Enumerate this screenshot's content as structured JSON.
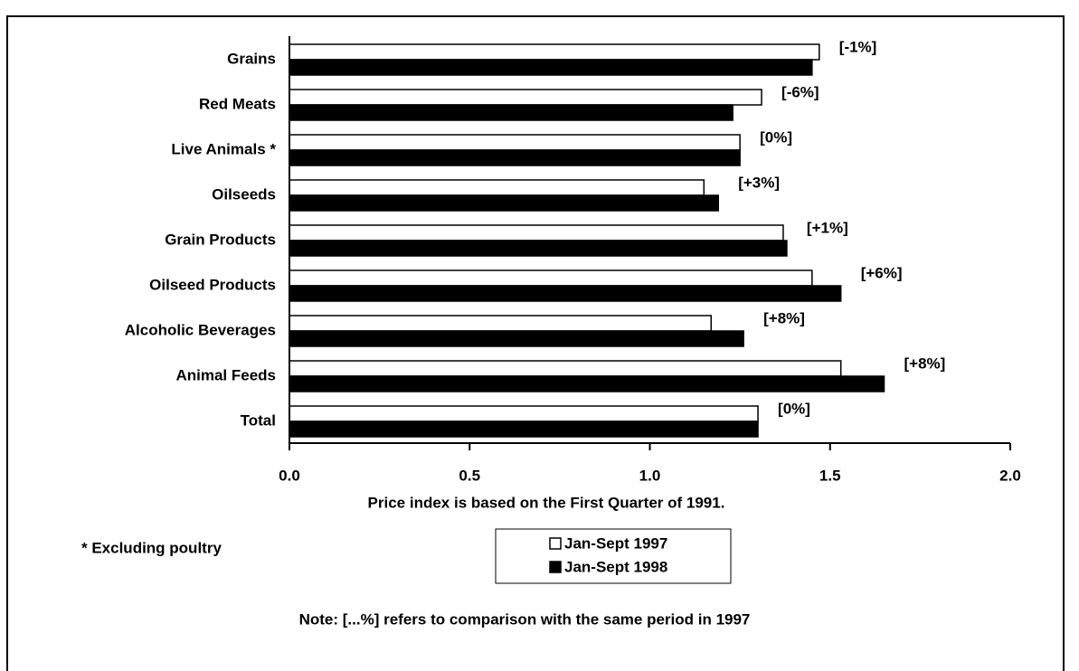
{
  "chart_data": {
    "type": "bar",
    "orientation": "horizontal",
    "categories": [
      "Grains",
      "Red Meats",
      "Live Animals *",
      "Oilseeds",
      "Grain Products",
      "Oilseed Products",
      "Alcoholic Beverages",
      "Animal Feeds",
      "Total"
    ],
    "series": [
      {
        "name": "Jan-Sept 1997",
        "color": "#ffffff",
        "values": [
          1.47,
          1.31,
          1.25,
          1.15,
          1.37,
          1.45,
          1.17,
          1.53,
          1.3
        ]
      },
      {
        "name": "Jan-Sept 1998",
        "color": "#000000",
        "values": [
          1.45,
          1.23,
          1.25,
          1.19,
          1.38,
          1.53,
          1.26,
          1.65,
          1.3
        ]
      }
    ],
    "annotations": [
      "[-1%]",
      "[-6%]",
      "[0%]",
      "[+3%]",
      "[+1%]",
      "[+6%]",
      "[+8%]",
      "[+8%]",
      "[0%]"
    ],
    "xlim": [
      0,
      2
    ],
    "xticks": [
      {
        "value": 0,
        "label": "0.0"
      },
      0.5,
      {
        "value": 1,
        "label": "1.0"
      },
      1.5,
      {
        "value": 2,
        "label": "2.0"
      }
    ],
    "xlabel": "Price index is based on the First Quarter of 1991.",
    "footnote": "* Excluding poultry",
    "note": "Note: [...%] refers to comparison with the same period in 1997",
    "legend": "bottom"
  }
}
